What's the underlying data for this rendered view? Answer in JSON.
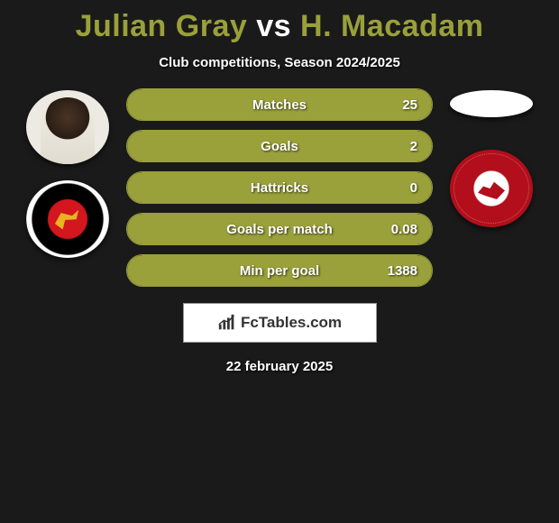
{
  "title": {
    "player1": "Julian Gray",
    "vs": "vs",
    "player2": "H. Macadam",
    "color1": "#9aa03a",
    "color2": "#ffffff"
  },
  "subtitle": "Club competitions, Season 2024/2025",
  "left": {
    "avatar_bg": "#eceae3",
    "badge_name": "walsall-fc-badge"
  },
  "right": {
    "placeholder_bg": "#ffffff",
    "badge_name": "morecambe-fc-badge"
  },
  "bars": {
    "fill_color": "#9aa03a",
    "border_color": "#9aa03a",
    "track_color": "transparent",
    "items": [
      {
        "label": "Matches",
        "value": "25",
        "fill_pct": 100
      },
      {
        "label": "Goals",
        "value": "2",
        "fill_pct": 100
      },
      {
        "label": "Hattricks",
        "value": "0",
        "fill_pct": 100
      },
      {
        "label": "Goals per match",
        "value": "0.08",
        "fill_pct": 100
      },
      {
        "label": "Min per goal",
        "value": "1388",
        "fill_pct": 100
      }
    ]
  },
  "brand": {
    "icon": "bars-chart-icon",
    "text": "FcTables.com"
  },
  "date": "22 february 2025",
  "bg_color": "#1a1a1a"
}
